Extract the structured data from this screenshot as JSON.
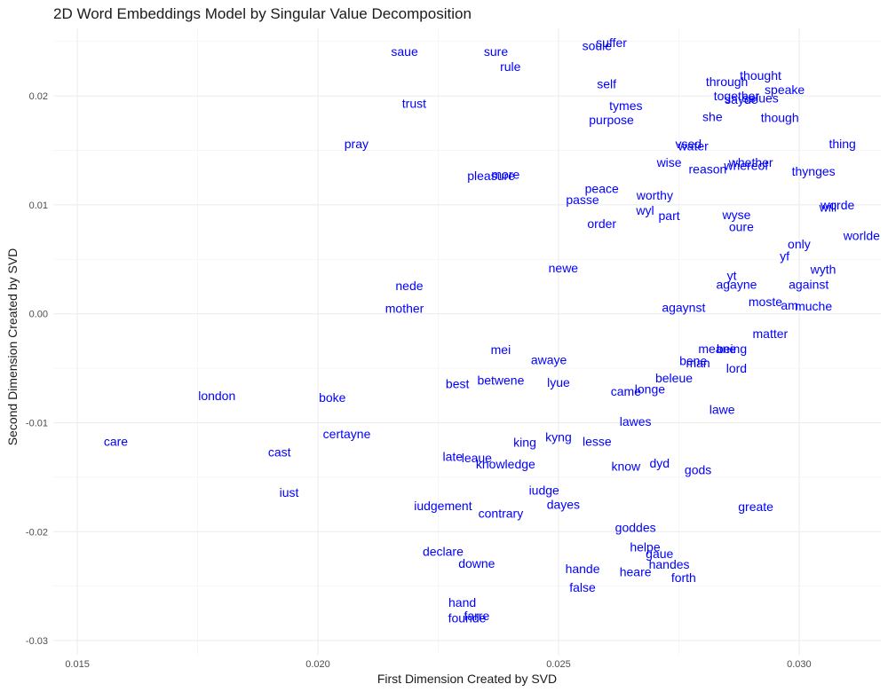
{
  "chart_data": {
    "type": "scatter",
    "title": "2D Word Embeddings Model by Singular Value Decomposition",
    "xlabel": "First Dimension Created by SVD",
    "ylabel": "Second Dimension Created by SVD",
    "xlim": [
      0.0145,
      0.0317
    ],
    "ylim": [
      -0.0313,
      0.0262
    ],
    "xticks": [
      0.015,
      0.02,
      0.025,
      0.03
    ],
    "xtick_labels": [
      "0.015",
      "0.020",
      "0.025",
      "0.030"
    ],
    "yticks": [
      -0.03,
      -0.02,
      -0.01,
      0.0,
      0.01,
      0.02
    ],
    "ytick_labels": [
      "-0.03",
      "-0.02",
      "-0.01",
      "0.00",
      "0.01",
      "0.02"
    ],
    "grid": true,
    "label_color": "#0000ff",
    "points": [
      {
        "label": "saue",
        "x": 0.0218,
        "y": 0.0241
      },
      {
        "label": "sure",
        "x": 0.0237,
        "y": 0.0241
      },
      {
        "label": "soule",
        "x": 0.0258,
        "y": 0.0246
      },
      {
        "label": "suffer",
        "x": 0.0261,
        "y": 0.0249
      },
      {
        "label": "rule",
        "x": 0.024,
        "y": 0.0227
      },
      {
        "label": "thought",
        "x": 0.0292,
        "y": 0.0219
      },
      {
        "label": "through",
        "x": 0.0285,
        "y": 0.0213
      },
      {
        "label": "self",
        "x": 0.026,
        "y": 0.0211
      },
      {
        "label": "speake",
        "x": 0.0297,
        "y": 0.0206
      },
      {
        "label": "together",
        "x": 0.0287,
        "y": 0.02
      },
      {
        "label": "sayde",
        "x": 0.0288,
        "y": 0.0197
      },
      {
        "label": "selues",
        "x": 0.0292,
        "y": 0.0198
      },
      {
        "label": "trust",
        "x": 0.022,
        "y": 0.0193
      },
      {
        "label": "tymes",
        "x": 0.0264,
        "y": 0.0191
      },
      {
        "label": "she",
        "x": 0.0282,
        "y": 0.0181
      },
      {
        "label": "though",
        "x": 0.0296,
        "y": 0.018
      },
      {
        "label": "purpose",
        "x": 0.0261,
        "y": 0.0178
      },
      {
        "label": "pray",
        "x": 0.0208,
        "y": 0.0156
      },
      {
        "label": "thing",
        "x": 0.0309,
        "y": 0.0156
      },
      {
        "label": "vsed",
        "x": 0.0277,
        "y": 0.0156
      },
      {
        "label": "water",
        "x": 0.0278,
        "y": 0.0154
      },
      {
        "label": "wise",
        "x": 0.0273,
        "y": 0.0139
      },
      {
        "label": "whether",
        "x": 0.029,
        "y": 0.0139
      },
      {
        "label": "whereof",
        "x": 0.0289,
        "y": 0.0136
      },
      {
        "label": "reason",
        "x": 0.0281,
        "y": 0.0133
      },
      {
        "label": "thynges",
        "x": 0.0303,
        "y": 0.0131
      },
      {
        "label": "pleasure",
        "x": 0.0236,
        "y": 0.0127
      },
      {
        "label": "more",
        "x": 0.0239,
        "y": 0.0128
      },
      {
        "label": "peace",
        "x": 0.0259,
        "y": 0.0115
      },
      {
        "label": "worthy",
        "x": 0.027,
        "y": 0.0109
      },
      {
        "label": "passe",
        "x": 0.0255,
        "y": 0.0105
      },
      {
        "label": "worde",
        "x": 0.0308,
        "y": 0.01
      },
      {
        "label": "will",
        "x": 0.0306,
        "y": 0.0098
      },
      {
        "label": "wyl",
        "x": 0.0268,
        "y": 0.0095
      },
      {
        "label": "part",
        "x": 0.0273,
        "y": 0.009
      },
      {
        "label": "wyse",
        "x": 0.0287,
        "y": 0.0091
      },
      {
        "label": "order",
        "x": 0.0259,
        "y": 0.0083
      },
      {
        "label": "oure",
        "x": 0.0288,
        "y": 0.008
      },
      {
        "label": "worlde",
        "x": 0.0313,
        "y": 0.0072
      },
      {
        "label": "only",
        "x": 0.03,
        "y": 0.0064
      },
      {
        "label": "yf",
        "x": 0.0297,
        "y": 0.0053
      },
      {
        "label": "newe",
        "x": 0.0251,
        "y": 0.0042
      },
      {
        "label": "wyth",
        "x": 0.0305,
        "y": 0.0041
      },
      {
        "label": "yt",
        "x": 0.0286,
        "y": 0.0035
      },
      {
        "label": "nede",
        "x": 0.0219,
        "y": 0.0026
      },
      {
        "label": "agayne",
        "x": 0.0287,
        "y": 0.0027
      },
      {
        "label": "against",
        "x": 0.0302,
        "y": 0.0027
      },
      {
        "label": "moste",
        "x": 0.0293,
        "y": 0.0011
      },
      {
        "label": "am",
        "x": 0.0298,
        "y": 0.0008
      },
      {
        "label": "muche",
        "x": 0.0303,
        "y": 0.0007
      },
      {
        "label": "mother",
        "x": 0.0218,
        "y": 0.0005
      },
      {
        "label": "agaynst",
        "x": 0.0276,
        "y": 0.0006
      },
      {
        "label": "matter",
        "x": 0.0294,
        "y": -0.0018
      },
      {
        "label": "meane",
        "x": 0.0283,
        "y": -0.0032
      },
      {
        "label": "being",
        "x": 0.0286,
        "y": -0.0032
      },
      {
        "label": "mei",
        "x": 0.0238,
        "y": -0.0033
      },
      {
        "label": "awaye",
        "x": 0.0248,
        "y": -0.0042
      },
      {
        "label": "bene",
        "x": 0.0278,
        "y": -0.0043
      },
      {
        "label": "man",
        "x": 0.0279,
        "y": -0.0045
      },
      {
        "label": "lord",
        "x": 0.0287,
        "y": -0.005
      },
      {
        "label": "beleue",
        "x": 0.0274,
        "y": -0.0059
      },
      {
        "label": "betwene",
        "x": 0.0238,
        "y": -0.0061
      },
      {
        "label": "lyue",
        "x": 0.025,
        "y": -0.0063
      },
      {
        "label": "best",
        "x": 0.0229,
        "y": -0.0064
      },
      {
        "label": "came",
        "x": 0.0264,
        "y": -0.0071
      },
      {
        "label": "longe",
        "x": 0.0269,
        "y": -0.0069
      },
      {
        "label": "london",
        "x": 0.0179,
        "y": -0.0075
      },
      {
        "label": "boke",
        "x": 0.0203,
        "y": -0.0077
      },
      {
        "label": "lawe",
        "x": 0.0284,
        "y": -0.0088
      },
      {
        "label": "lawes",
        "x": 0.0266,
        "y": -0.0099
      },
      {
        "label": "certayne",
        "x": 0.0206,
        "y": -0.011
      },
      {
        "label": "kyng",
        "x": 0.025,
        "y": -0.0113
      },
      {
        "label": "care",
        "x": 0.0158,
        "y": -0.0117
      },
      {
        "label": "king",
        "x": 0.0243,
        "y": -0.0118
      },
      {
        "label": "lesse",
        "x": 0.0258,
        "y": -0.0117
      },
      {
        "label": "cast",
        "x": 0.0192,
        "y": -0.0127
      },
      {
        "label": "late",
        "x": 0.0228,
        "y": -0.0131
      },
      {
        "label": "leaue",
        "x": 0.0233,
        "y": -0.0132
      },
      {
        "label": "knowledge",
        "x": 0.0239,
        "y": -0.0138
      },
      {
        "label": "dyd",
        "x": 0.0271,
        "y": -0.0137
      },
      {
        "label": "know",
        "x": 0.0264,
        "y": -0.014
      },
      {
        "label": "gods",
        "x": 0.0279,
        "y": -0.0143
      },
      {
        "label": "iust",
        "x": 0.0194,
        "y": -0.0164
      },
      {
        "label": "iudge",
        "x": 0.0247,
        "y": -0.0162
      },
      {
        "label": "iudgement",
        "x": 0.0226,
        "y": -0.0176
      },
      {
        "label": "dayes",
        "x": 0.0251,
        "y": -0.0175
      },
      {
        "label": "greate",
        "x": 0.0291,
        "y": -0.0177
      },
      {
        "label": "contrary",
        "x": 0.0238,
        "y": -0.0183
      },
      {
        "label": "goddes",
        "x": 0.0266,
        "y": -0.0196
      },
      {
        "label": "helpe",
        "x": 0.0268,
        "y": -0.0214
      },
      {
        "label": "gaue",
        "x": 0.0271,
        "y": -0.022
      },
      {
        "label": "declare",
        "x": 0.0226,
        "y": -0.0218
      },
      {
        "label": "downe",
        "x": 0.0233,
        "y": -0.0229
      },
      {
        "label": "handes",
        "x": 0.0273,
        "y": -0.023
      },
      {
        "label": "hande",
        "x": 0.0255,
        "y": -0.0234
      },
      {
        "label": "heare",
        "x": 0.0266,
        "y": -0.0237
      },
      {
        "label": "forth",
        "x": 0.0276,
        "y": -0.0242
      },
      {
        "label": "false",
        "x": 0.0255,
        "y": -0.0251
      },
      {
        "label": "hand",
        "x": 0.023,
        "y": -0.0265
      },
      {
        "label": "farre",
        "x": 0.0233,
        "y": -0.0277
      },
      {
        "label": "founde",
        "x": 0.0231,
        "y": -0.0279
      }
    ]
  }
}
